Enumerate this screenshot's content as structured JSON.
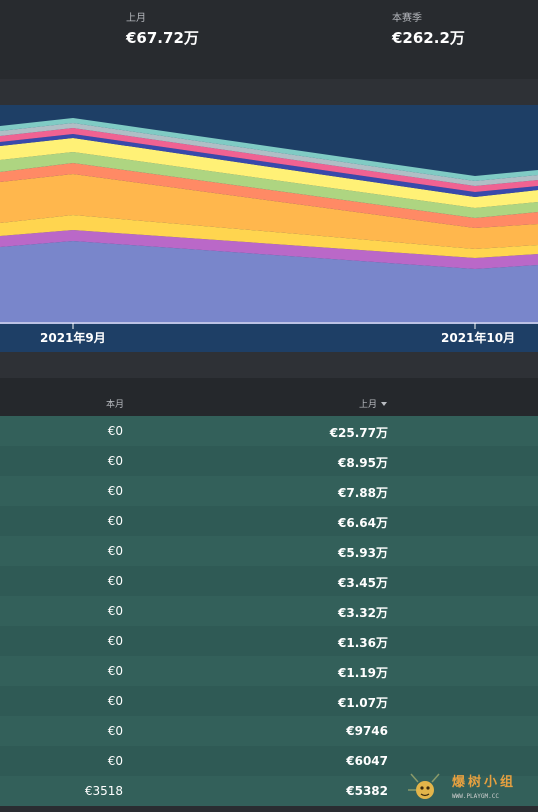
{
  "summary": {
    "last_month_label": "上月",
    "last_month_value": "€67.72万",
    "season_label": "本赛季",
    "season_value": "€262.2万"
  },
  "chart_data": {
    "type": "area",
    "stacked": true,
    "x": [
      "2021年9月",
      "2021年10月"
    ],
    "tick_labels": [
      "2021年9月",
      "2021年10月"
    ],
    "colors": [
      "#7986cb",
      "#ba68c8",
      "#ffd54f",
      "#ffb74d",
      "#ff8a65",
      "#aed581",
      "#fff176",
      "#3949ab",
      "#f06292",
      "#b0bec5",
      "#80cbc4"
    ],
    "background": "#1e3f66"
  },
  "table": {
    "headers": {
      "current_month": "本月",
      "last_month": "上月"
    },
    "rows": [
      {
        "current": "€0",
        "prev": "€25.77万"
      },
      {
        "current": "€0",
        "prev": "€8.95万"
      },
      {
        "current": "€0",
        "prev": "€7.88万"
      },
      {
        "current": "€0",
        "prev": "€6.64万"
      },
      {
        "current": "€0",
        "prev": "€5.93万"
      },
      {
        "current": "€0",
        "prev": "€3.45万"
      },
      {
        "current": "€0",
        "prev": "€3.32万"
      },
      {
        "current": "€0",
        "prev": "€1.36万"
      },
      {
        "current": "€0",
        "prev": "€1.19万"
      },
      {
        "current": "€0",
        "prev": "€1.07万"
      },
      {
        "current": "€0",
        "prev": "€9746"
      },
      {
        "current": "€0",
        "prev": "€6047"
      },
      {
        "current": "€3518",
        "prev": "€5382"
      }
    ]
  },
  "watermark": {
    "text": "爆树小组",
    "url": "WWW.PLAYGM.CC"
  }
}
